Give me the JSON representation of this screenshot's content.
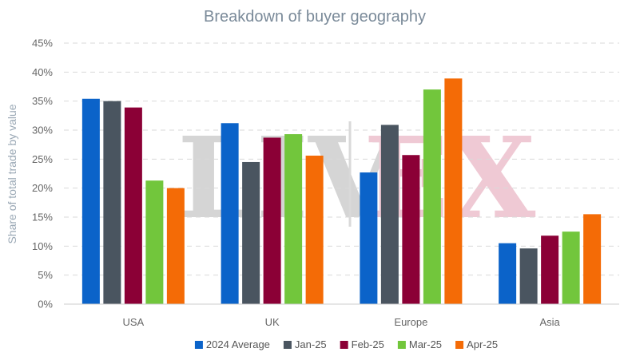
{
  "chart_data": {
    "type": "bar",
    "title": "Breakdown of buyer geography",
    "xlabel": "",
    "ylabel": "Share of total trade by value",
    "categories": [
      "USA",
      "UK",
      "Europe",
      "Asia"
    ],
    "ylim": [
      0,
      45
    ],
    "ytick_step": 5,
    "ytick_labels": [
      "0%",
      "5%",
      "10%",
      "15%",
      "20%",
      "25%",
      "30%",
      "35%",
      "40%",
      "45%"
    ],
    "grid": true,
    "legend_position": "bottom",
    "series": [
      {
        "name": "2024 Average",
        "color": "#0b63c9",
        "values": [
          35.4,
          31.2,
          22.7,
          10.5
        ]
      },
      {
        "name": "Jan-25",
        "color": "#4a5560",
        "values": [
          35.0,
          24.5,
          30.9,
          9.6
        ]
      },
      {
        "name": "Feb-25",
        "color": "#8b0036",
        "values": [
          33.9,
          28.7,
          25.7,
          11.8
        ]
      },
      {
        "name": "Mar-25",
        "color": "#72c63c",
        "values": [
          21.3,
          29.3,
          37.0,
          12.5
        ]
      },
      {
        "name": "Apr-25",
        "color": "#f46b06",
        "values": [
          20.0,
          25.6,
          38.9,
          15.5
        ]
      }
    ]
  },
  "watermark": {
    "left_text": "LIV",
    "right_text": "EX",
    "left_color": "#d3d3d3",
    "right_color": "#efc7d2"
  }
}
